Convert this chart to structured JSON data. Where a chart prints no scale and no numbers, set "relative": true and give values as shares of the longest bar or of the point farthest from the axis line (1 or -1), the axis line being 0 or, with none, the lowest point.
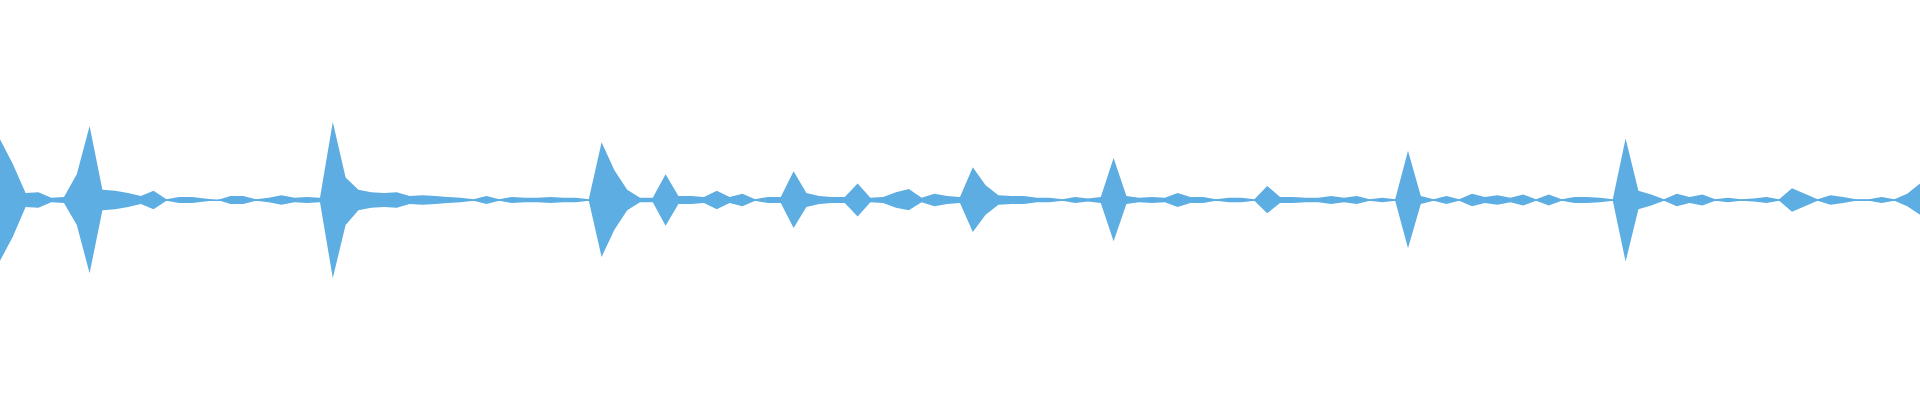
{
  "chart_data": {
    "type": "area",
    "relative": true,
    "categories": [
      null,
      null,
      null,
      null,
      null,
      null,
      null,
      null,
      null,
      null,
      null,
      null,
      null,
      null,
      null,
      null,
      null,
      null,
      null,
      null,
      null,
      null,
      null,
      null,
      null,
      null,
      null,
      null,
      null,
      null,
      null,
      null,
      null,
      null,
      null,
      null,
      null,
      null,
      null,
      null,
      null,
      null,
      null,
      null,
      null,
      null,
      null,
      null,
      null,
      null,
      null,
      null,
      null,
      null,
      null,
      null,
      null,
      null,
      null,
      null,
      null,
      null,
      null,
      null,
      null,
      null,
      null,
      null,
      null,
      null,
      null,
      null,
      null,
      null,
      null,
      null,
      null,
      null,
      null,
      null,
      null,
      null,
      null,
      null,
      null,
      null,
      null,
      null,
      null,
      null,
      null,
      null,
      null,
      null,
      null,
      null,
      null,
      null,
      null,
      null,
      null,
      null,
      null,
      null,
      null,
      null,
      null,
      null,
      null,
      null,
      null,
      null,
      null,
      null,
      null,
      null,
      null,
      null,
      null,
      null,
      null,
      null,
      null,
      null,
      null,
      null,
      null,
      null,
      null,
      null,
      null,
      null,
      null,
      null,
      null,
      null,
      null,
      null,
      null,
      null,
      null,
      null,
      null,
      null,
      null,
      null,
      null,
      null,
      null,
      null,
      null
    ],
    "series": [
      {
        "color": "#5dade2",
        "values": [
          0.78,
          0.46,
          0.09,
          0.1,
          0.03,
          0.04,
          0.33,
          0.95,
          0.13,
          0.12,
          0.09,
          0.05,
          0.12,
          0.01,
          0.04,
          0.04,
          0.02,
          0,
          0.05,
          0.05,
          0.01,
          0.03,
          0.06,
          0.03,
          0.04,
          0.03,
          1.0,
          0.29,
          0.13,
          0.1,
          0.09,
          0.1,
          0.05,
          0.06,
          0.05,
          0.04,
          0.03,
          0.01,
          0.05,
          0.01,
          0.04,
          0.03,
          0.03,
          0.04,
          0.03,
          0.03,
          0.01,
          0.74,
          0.38,
          0.13,
          0.03,
          0.03,
          0.33,
          0.05,
          0.05,
          0.04,
          0.12,
          0.04,
          0.08,
          0.01,
          0.04,
          0.04,
          0.37,
          0.09,
          0.05,
          0.04,
          0.04,
          0.21,
          0.03,
          0.04,
          0.1,
          0.14,
          0.03,
          0.08,
          0.05,
          0.04,
          0.42,
          0.19,
          0.06,
          0.05,
          0.05,
          0.03,
          0.03,
          0.01,
          0.04,
          0.02,
          0.04,
          0.54,
          0.05,
          0.03,
          0.04,
          0.03,
          0.09,
          0.04,
          0.04,
          0.01,
          0.03,
          0.03,
          0.01,
          0.18,
          0.04,
          0.04,
          0.03,
          0.03,
          0.05,
          0.03,
          0.05,
          0.01,
          0.03,
          0.01,
          0.63,
          0.05,
          0.01,
          0.05,
          0.01,
          0.08,
          0.04,
          0.06,
          0.03,
          0.07,
          0.01,
          0.07,
          0.01,
          0.04,
          0.04,
          0.03,
          0.01,
          0.79,
          0.12,
          0.07,
          0.01,
          0.08,
          0.04,
          0.07,
          0.01,
          0.03,
          0.01,
          0.02,
          0.04,
          0.01,
          0.15,
          0.08,
          0.01,
          0.06,
          0.04,
          0.01,
          0.01,
          0.04,
          0.01,
          0.08,
          0.21
        ]
      },
      {
        "color": "#5caee3",
        "values": [
          -0.78,
          -0.47,
          -0.09,
          -0.1,
          -0.03,
          -0.04,
          -0.32,
          -0.94,
          -0.13,
          -0.12,
          -0.09,
          -0.05,
          -0.12,
          -0.01,
          -0.04,
          -0.04,
          -0.02,
          0,
          -0.05,
          -0.05,
          -0.01,
          -0.03,
          -0.06,
          -0.03,
          -0.04,
          -0.03,
          -1.0,
          -0.32,
          -0.13,
          -0.1,
          -0.09,
          -0.1,
          -0.05,
          -0.06,
          -0.05,
          -0.04,
          -0.03,
          -0.01,
          -0.05,
          -0.01,
          -0.04,
          -0.03,
          -0.03,
          -0.04,
          -0.03,
          -0.03,
          -0.01,
          -0.73,
          -0.38,
          -0.13,
          -0.03,
          -0.03,
          -0.33,
          -0.05,
          -0.05,
          -0.04,
          -0.12,
          -0.04,
          -0.08,
          -0.01,
          -0.04,
          -0.04,
          -0.36,
          -0.09,
          -0.05,
          -0.04,
          -0.04,
          -0.21,
          -0.03,
          -0.04,
          -0.1,
          -0.13,
          -0.03,
          -0.08,
          -0.05,
          -0.04,
          -0.41,
          -0.19,
          -0.06,
          -0.05,
          -0.05,
          -0.03,
          -0.03,
          -0.01,
          -0.04,
          -0.02,
          -0.04,
          -0.53,
          -0.05,
          -0.03,
          -0.04,
          -0.03,
          -0.09,
          -0.04,
          -0.04,
          -0.01,
          -0.03,
          -0.03,
          -0.01,
          -0.17,
          -0.04,
          -0.04,
          -0.03,
          -0.03,
          -0.05,
          -0.03,
          -0.05,
          -0.01,
          -0.03,
          -0.01,
          -0.62,
          -0.05,
          -0.01,
          -0.05,
          -0.01,
          -0.08,
          -0.04,
          -0.06,
          -0.03,
          -0.07,
          -0.01,
          -0.07,
          -0.01,
          -0.04,
          -0.04,
          -0.03,
          -0.01,
          -0.79,
          -0.12,
          -0.07,
          -0.01,
          -0.08,
          -0.04,
          -0.07,
          -0.01,
          -0.03,
          -0.01,
          -0.02,
          -0.04,
          -0.01,
          -0.15,
          -0.08,
          -0.01,
          -0.06,
          -0.04,
          -0.01,
          -0.01,
          -0.04,
          -0.01,
          -0.08,
          -0.19
        ]
      }
    ],
    "ref_lines": [
      {
        "axis": "y",
        "value": 0,
        "color": "#5dade2"
      }
    ]
  }
}
